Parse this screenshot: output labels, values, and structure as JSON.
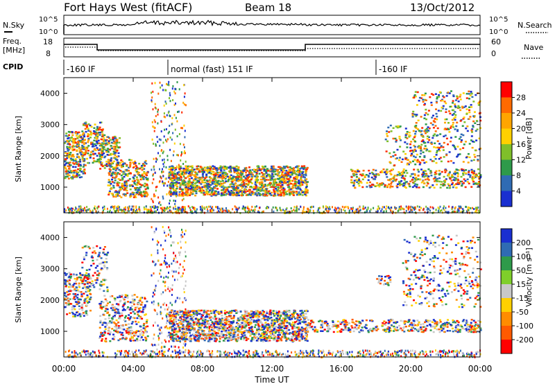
{
  "header": {
    "title": "Fort Hays West (fitACF)",
    "beam": "Beam 18",
    "date": "13/Oct/2012"
  },
  "strip_labels": {
    "nsky": "N.Sky",
    "nsky_ticks": [
      "10^5",
      "10^0"
    ],
    "nsearch": "N.Search",
    "nsearch_ticks": [
      "10^5",
      "10^0"
    ],
    "freq_label": "Freq.",
    "freq_unit": "[MHz]",
    "freq_ticks": [
      "18",
      "8"
    ],
    "nave": "Nave",
    "nave_ticks": [
      "60",
      "0"
    ],
    "cpid": "CPID"
  },
  "cpid_segments": [
    {
      "label": "-160 IF",
      "start_hour": 0,
      "end_hour": 6
    },
    {
      "label": "normal (fast) 151 IF",
      "start_hour": 6,
      "end_hour": 18
    },
    {
      "label": "-160 IF",
      "start_hour": 18,
      "end_hour": 24
    }
  ],
  "chart_data": [
    {
      "type": "heatmap",
      "name": "power",
      "ylabel": "Slant Range [km]",
      "xlim_hours": [
        0,
        24
      ],
      "ylim_km": [
        180,
        4500
      ],
      "yticks": [
        "1000",
        "2000",
        "3000",
        "4000"
      ],
      "colorbar_label": "Power [dB]",
      "colorbar_ticks": [
        "28",
        "24",
        "20",
        "16",
        "12",
        "8",
        "4"
      ],
      "colorbar_colors": [
        "#ff0000",
        "#ff6a00",
        "#ffa500",
        "#ffd000",
        "#7fbf2a",
        "#2e9a4a",
        "#2f6bb3",
        "#1a2fd0"
      ],
      "colors": {
        "low": "#1a2fd0",
        "mid": "#2e9a4a",
        "high": "#ff3a00"
      }
    },
    {
      "type": "heatmap",
      "name": "velocity",
      "ylabel": "Slant Range [km]",
      "xlim_hours": [
        0,
        24
      ],
      "ylim_km": [
        180,
        4500
      ],
      "yticks": [
        "1000",
        "2000",
        "3000",
        "4000"
      ],
      "colorbar_label": "Velocity [m s⁻¹]",
      "colorbar_ticks": [
        "200",
        "100",
        "50",
        "15",
        "-15",
        "-50",
        "-100",
        "-200"
      ],
      "colorbar_colors": [
        "#1a2fd0",
        "#2f6bb3",
        "#2e9a4a",
        "#7fcf2a",
        "#c8c8c8",
        "#ffd000",
        "#ff8c00",
        "#ff5a00",
        "#ff0000"
      ],
      "colors": {
        "toward": "#1a2fd0",
        "ground": "#c8c8c8",
        "away": "#ff5a00"
      }
    }
  ],
  "x_axis": {
    "label": "Time UT",
    "ticks": [
      "00:00",
      "04:00",
      "08:00",
      "12:00",
      "16:00",
      "20:00",
      "00:00"
    ]
  }
}
